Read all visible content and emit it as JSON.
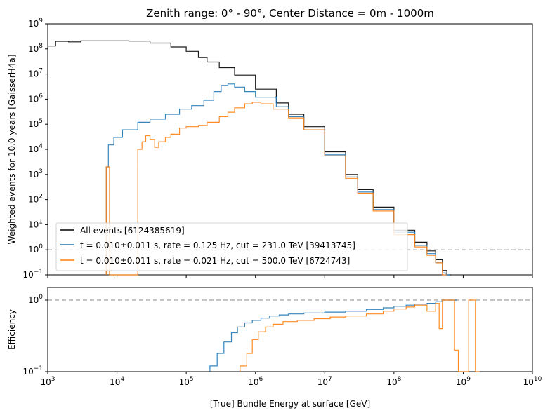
{
  "chart_data": [
    {
      "type": "line",
      "title": "Zenith range: 0° - 90°, Center Distance = 0m - 1000m",
      "xlabel": "[True] Bundle Energy at surface [GeV]",
      "ylabel": "Weighted events for 10.0 years [GaisserH4a]",
      "xscale": "log",
      "yscale": "log",
      "xlim": [
        1000,
        10000000000
      ],
      "ylim": [
        0.1,
        1000000000
      ],
      "x_ticks": [
        1000,
        10000,
        100000,
        1000000,
        10000000,
        100000000,
        1000000000,
        10000000000
      ],
      "x_tick_labels": [
        "10^3",
        "10^4",
        "10^5",
        "10^6",
        "10^7",
        "10^8",
        "10^9",
        "10^10"
      ],
      "y_ticks": [
        0.1,
        1,
        10,
        100,
        1000,
        10000,
        100000,
        1000000,
        10000000,
        100000000,
        1000000000
      ],
      "y_tick_labels": [
        "10^−1",
        "10^0",
        "10^1",
        "10^2",
        "10^3",
        "10^4",
        "10^5",
        "10^6",
        "10^7",
        "10^8",
        "10^9"
      ],
      "reference_line": {
        "y": 1,
        "style": "dashed",
        "color": "#aaaaaa"
      },
      "legend_position": "lower-left",
      "grid": false,
      "series": [
        {
          "name": "All events [6124385619]",
          "color": "#000000",
          "step": true,
          "points": [
            [
              1000,
              130000000
            ],
            [
              1300,
              200000000
            ],
            [
              2000,
              190000000
            ],
            [
              3000,
              210000000
            ],
            [
              5000,
              210000000
            ],
            [
              10000,
              210000000
            ],
            [
              15000,
              205000000
            ],
            [
              30000,
              170000000
            ],
            [
              60000,
              120000000
            ],
            [
              100000,
              80000000
            ],
            [
              150000,
              45000000
            ],
            [
              200000,
              30000000
            ],
            [
              300000,
              18000000
            ],
            [
              500000,
              9000000
            ],
            [
              1000000,
              2500000
            ],
            [
              2000000,
              700000
            ],
            [
              3000000,
              250000
            ],
            [
              5000000,
              80000
            ],
            [
              10000000,
              8000
            ],
            [
              20000000,
              1000
            ],
            [
              30000000,
              250
            ],
            [
              50000000,
              50
            ],
            [
              100000000,
              6
            ],
            [
              200000000,
              2
            ],
            [
              300000000,
              0.9
            ],
            [
              400000000,
              0.4
            ],
            [
              500000000,
              0.15
            ],
            [
              580000000,
              0.1
            ]
          ]
        },
        {
          "name": "t = 0.010±0.011 s, rate = 0.125 Hz, cut = 231.0 TeV [39413745]",
          "color": "#1f77b4",
          "step": true,
          "points": [
            [
              7000,
              0.1
            ],
            [
              7000,
              2000
            ],
            [
              7500,
              15000
            ],
            [
              9000,
              30000
            ],
            [
              12000,
              60000
            ],
            [
              20000,
              120000
            ],
            [
              30000,
              160000
            ],
            [
              50000,
              250000
            ],
            [
              80000,
              400000
            ],
            [
              120000,
              550000
            ],
            [
              180000,
              900000
            ],
            [
              250000,
              2000000
            ],
            [
              320000,
              3500000
            ],
            [
              400000,
              4000000
            ],
            [
              500000,
              3000000
            ],
            [
              700000,
              2000000
            ],
            [
              1000000,
              1200000
            ],
            [
              2000000,
              500000
            ],
            [
              3000000,
              200000
            ],
            [
              5000000,
              60000
            ],
            [
              10000000,
              6000
            ],
            [
              20000000,
              800
            ],
            [
              30000000,
              200
            ],
            [
              50000000,
              40
            ],
            [
              100000000,
              5
            ],
            [
              200000000,
              1.5
            ],
            [
              300000000,
              0.7
            ],
            [
              400000000,
              0.3
            ],
            [
              500000000,
              0.12
            ],
            [
              550000000,
              0.1
            ]
          ]
        },
        {
          "name": "t = 0.010±0.011 s, rate = 0.021 Hz, cut = 500.0 TeV [6724743]",
          "color": "#ff7f0e",
          "step": true,
          "points": [
            [
              7000,
              0.1
            ],
            [
              7000,
              2000
            ],
            [
              7800,
              0.1
            ],
            [
              20000,
              0.1
            ],
            [
              20000,
              10000
            ],
            [
              23000,
              20000
            ],
            [
              26000,
              35000
            ],
            [
              30000,
              25000
            ],
            [
              35000,
              12000
            ],
            [
              40000,
              20000
            ],
            [
              50000,
              30000
            ],
            [
              60000,
              40000
            ],
            [
              80000,
              70000
            ],
            [
              100000,
              80000
            ],
            [
              150000,
              90000
            ],
            [
              200000,
              120000
            ],
            [
              300000,
              200000
            ],
            [
              400000,
              300000
            ],
            [
              500000,
              450000
            ],
            [
              700000,
              650000
            ],
            [
              900000,
              750000
            ],
            [
              1200000,
              650000
            ],
            [
              1800000,
              400000
            ],
            [
              3000000,
              180000
            ],
            [
              5000000,
              60000
            ],
            [
              10000000,
              5500
            ],
            [
              20000000,
              700
            ],
            [
              30000000,
              180
            ],
            [
              50000000,
              35
            ],
            [
              100000000,
              4
            ],
            [
              200000000,
              1.3
            ],
            [
              300000000,
              0.6
            ],
            [
              400000000,
              0.3
            ],
            [
              500000000,
              0.1
            ]
          ]
        }
      ]
    },
    {
      "type": "line",
      "xlabel": "[True] Bundle Energy at surface [GeV]",
      "ylabel": "Efficiency",
      "xscale": "log",
      "yscale": "log",
      "xlim": [
        1000,
        10000000000
      ],
      "ylim": [
        0.1,
        1.5
      ],
      "y_ticks": [
        0.1,
        1
      ],
      "y_tick_labels": [
        "10^−1",
        "10^0"
      ],
      "reference_line": {
        "y": 1,
        "style": "dashed",
        "color": "#aaaaaa"
      },
      "grid": false,
      "series": [
        {
          "color": "#1f77b4",
          "step": true,
          "points": [
            [
              220000,
              0.1
            ],
            [
              220000,
              0.12
            ],
            [
              280000,
              0.18
            ],
            [
              350000,
              0.26
            ],
            [
              450000,
              0.35
            ],
            [
              550000,
              0.42
            ],
            [
              700000,
              0.48
            ],
            [
              900000,
              0.52
            ],
            [
              1200000,
              0.56
            ],
            [
              1600000,
              0.6
            ],
            [
              2200000,
              0.62
            ],
            [
              3000000,
              0.64
            ],
            [
              5000000,
              0.66
            ],
            [
              10000000,
              0.68
            ],
            [
              20000000,
              0.7
            ],
            [
              40000000,
              0.74
            ],
            [
              70000000,
              0.78
            ],
            [
              100000000,
              0.82
            ],
            [
              150000000,
              0.85
            ],
            [
              200000000,
              0.88
            ],
            [
              300000000,
              0.9
            ],
            [
              400000000,
              0.95
            ],
            [
              500000000,
              1
            ],
            [
              600000000,
              1
            ],
            [
              700000000,
              1
            ]
          ]
        },
        {
          "color": "#ff7f0e",
          "step": true,
          "points": [
            [
              600000,
              0.1
            ],
            [
              600000,
              0.12
            ],
            [
              750000,
              0.18
            ],
            [
              900000,
              0.28
            ],
            [
              1100000,
              0.36
            ],
            [
              1400000,
              0.42
            ],
            [
              1800000,
              0.46
            ],
            [
              2500000,
              0.5
            ],
            [
              4000000,
              0.52
            ],
            [
              7000000,
              0.55
            ],
            [
              12000000,
              0.58
            ],
            [
              20000000,
              0.6
            ],
            [
              40000000,
              0.64
            ],
            [
              70000000,
              0.7
            ],
            [
              100000000,
              0.75
            ],
            [
              150000000,
              0.8
            ],
            [
              200000000,
              0.85
            ],
            [
              300000000,
              0.7
            ],
            [
              400000000,
              0.9
            ],
            [
              450000000,
              0.4
            ],
            [
              500000000,
              1
            ],
            [
              700000000,
              1
            ],
            [
              750000000,
              0.2
            ],
            [
              800000000,
              0.2
            ],
            [
              850000000,
              0.1
            ],
            [
              1000000000,
              0.1
            ],
            [
              1200000000,
              1
            ],
            [
              1500000000,
              1
            ],
            [
              1500000000,
              0.1
            ]
          ]
        }
      ]
    }
  ]
}
